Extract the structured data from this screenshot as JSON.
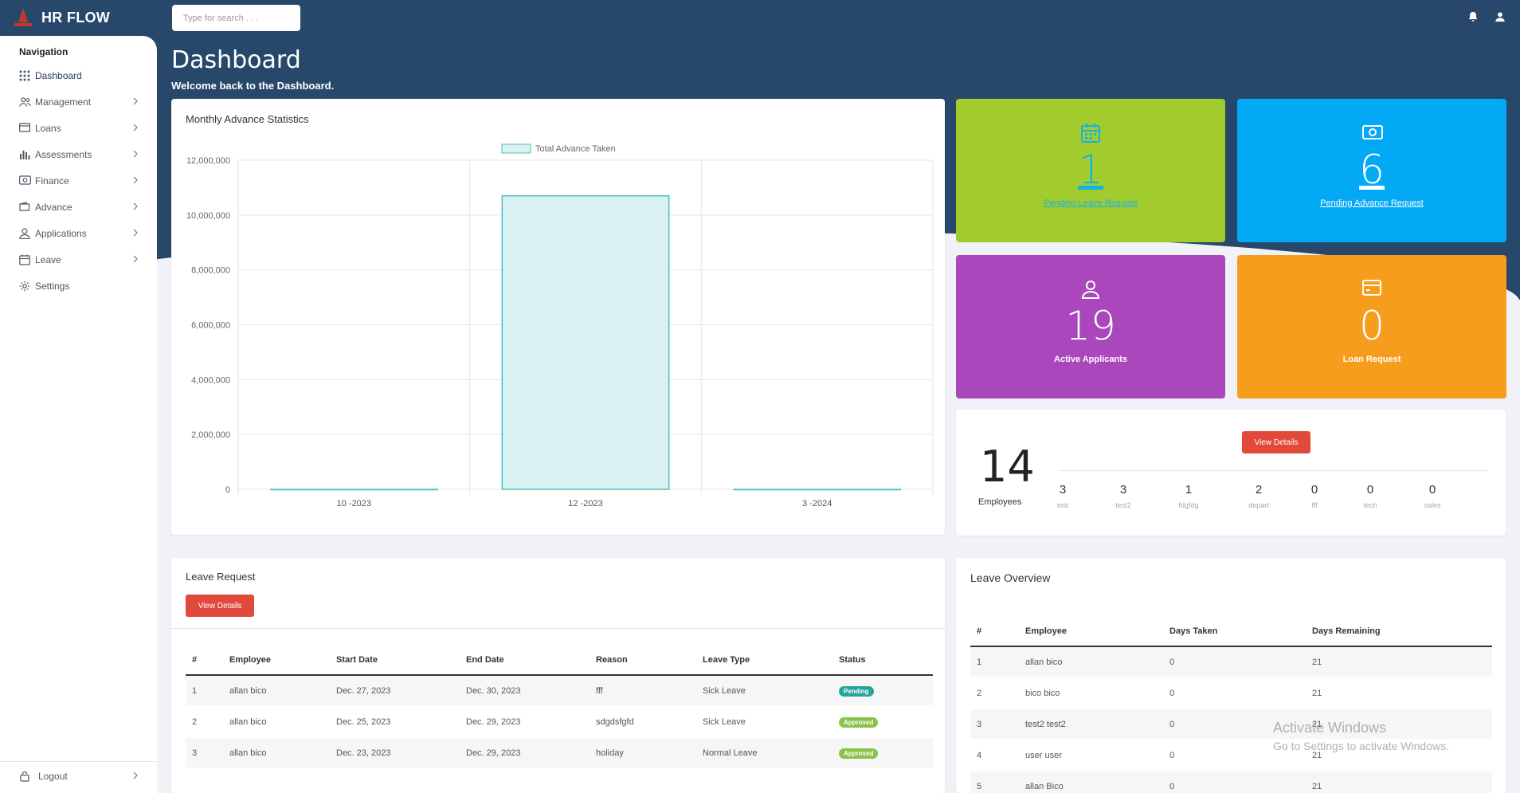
{
  "app": {
    "name": "HR FLOW"
  },
  "search": {
    "placeholder": "Type for search . . ."
  },
  "nav": {
    "title": "Navigation",
    "items": [
      {
        "label": "Dashboard",
        "icon": "grid-icon"
      },
      {
        "label": "Management",
        "icon": "users-icon"
      },
      {
        "label": "Loans",
        "icon": "card-icon"
      },
      {
        "label": "Assessments",
        "icon": "bar-chart-icon"
      },
      {
        "label": "Finance",
        "icon": "money-icon"
      },
      {
        "label": "Advance",
        "icon": "wallet-icon"
      },
      {
        "label": "Applications",
        "icon": "user-icon"
      },
      {
        "label": "Leave",
        "icon": "calendar-icon"
      },
      {
        "label": "Settings",
        "icon": "gear-icon"
      }
    ],
    "logout": "Logout"
  },
  "page": {
    "title": "Dashboard",
    "subtitle": "Welcome back to the Dashboard."
  },
  "chart_card": {
    "title": "Monthly Advance Statistics"
  },
  "chart_data": {
    "type": "bar",
    "title": "",
    "categories": [
      "10 -2023",
      "12 -2023",
      "3 -2024"
    ],
    "series": [
      {
        "name": "Total Advance Taken",
        "values": [
          0,
          10700000,
          0
        ]
      }
    ],
    "ylim": [
      0,
      12000000
    ],
    "yticks": [
      "0",
      "2,000,000",
      "4,000,000",
      "6,000,000",
      "8,000,000",
      "10,000,000",
      "12,000,000"
    ],
    "xlabel": "",
    "ylabel": "",
    "grid": true,
    "legend": "top-center",
    "colors": {
      "fill": "#d9f1f1",
      "stroke": "#4bc0c0"
    }
  },
  "stats": [
    {
      "value": "1",
      "label": "Pending Leave Request",
      "color": "#a2cc2e",
      "text_color": "#14b3e6",
      "icon": "calendar-icon"
    },
    {
      "value": "6",
      "label": "Pending Advance Request",
      "color": "#03a9f4",
      "text_color": "#ffffff",
      "icon": "money-icon"
    },
    {
      "value": "19",
      "label": "Active Applicants",
      "color": "#ab47bc",
      "text_color": "#ffffff",
      "icon": "user-icon"
    },
    {
      "value": "0",
      "label": "Loan Request",
      "color": "#f79d1e",
      "text_color": "#ffffff",
      "icon": "card-icon"
    }
  ],
  "employees": {
    "total": "14",
    "label": "Employees",
    "button": "View Details",
    "departments": [
      {
        "value": "3",
        "name": "test"
      },
      {
        "value": "3",
        "name": "test2"
      },
      {
        "value": "1",
        "name": "fdgfdg"
      },
      {
        "value": "2",
        "name": "depart"
      },
      {
        "value": "0",
        "name": "fff"
      },
      {
        "value": "0",
        "name": "tech"
      },
      {
        "value": "0",
        "name": "sales"
      }
    ]
  },
  "leave_request": {
    "title": "Leave Request",
    "button": "View Details",
    "headers": [
      "#",
      "Employee",
      "Start Date",
      "End Date",
      "Reason",
      "Leave Type",
      "Status"
    ],
    "rows": [
      [
        "1",
        "allan bico",
        "Dec. 27, 2023",
        "Dec. 30, 2023",
        "fff",
        "Sick Leave",
        "Pending"
      ],
      [
        "2",
        "allan bico",
        "Dec. 25, 2023",
        "Dec. 29, 2023",
        "sdgdsfgfd",
        "Sick Leave",
        "Approved"
      ],
      [
        "3",
        "allan bico",
        "Dec. 23, 2023",
        "Dec. 29, 2023",
        "holiday",
        "Normal Leave",
        "Approved"
      ]
    ],
    "status_colors": {
      "Pending": "#26a69a",
      "Approved": "#8bc34a"
    }
  },
  "leave_overview": {
    "title": "Leave Overview",
    "headers": [
      "#",
      "Employee",
      "Days Taken",
      "Days Remaining"
    ],
    "rows": [
      [
        "1",
        "allan bico",
        "0",
        "21"
      ],
      [
        "2",
        "bico bico",
        "0",
        "21"
      ],
      [
        "3",
        "test2 test2",
        "0",
        "21"
      ],
      [
        "4",
        "user user",
        "0",
        "21"
      ],
      [
        "5",
        "allan Bico",
        "0",
        "21"
      ]
    ]
  },
  "watermark": {
    "line1": "Activate Windows",
    "line2": "Go to Settings to activate Windows."
  }
}
